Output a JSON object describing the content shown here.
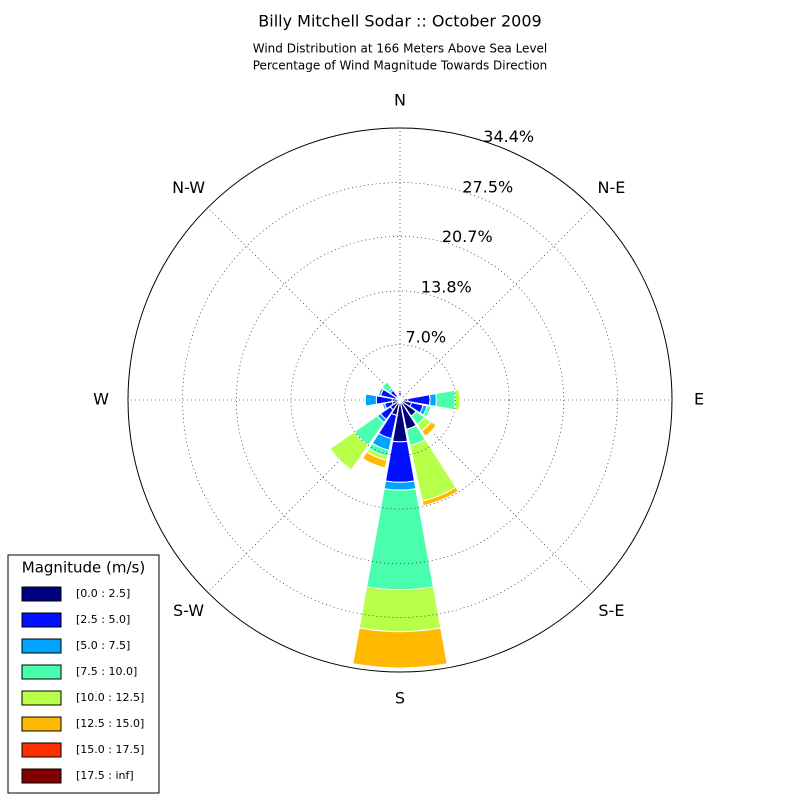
{
  "chart_data": {
    "type": "windrose",
    "title": "Billy Mitchell Sodar :: October 2009",
    "subtitle": [
      "Wind Distribution at 166 Meters Above Sea Level",
      "Percentage of Wind Magnitude Towards Direction"
    ],
    "categories": [
      "N",
      null,
      "N-E",
      null,
      "E",
      null,
      "S-E",
      null,
      "S",
      null,
      "S-W",
      null,
      "W",
      null,
      "N-W",
      null
    ],
    "rlim": [
      0,
      34.4
    ],
    "rticks": [
      {
        "value": 7.0,
        "label": "7.0%"
      },
      {
        "value": 13.8,
        "label": "13.8%"
      },
      {
        "value": 20.7,
        "label": "20.7%"
      },
      {
        "value": 27.5,
        "label": "27.5%"
      },
      {
        "value": 34.4,
        "label": "34.4%"
      }
    ],
    "legend_title": "Magnitude (m/s)",
    "legend_position": "lower left",
    "series": [
      {
        "name": "[0.0 : 2.5]",
        "color": "#00007f",
        "values": [
          1.0,
          0.3,
          0.3,
          0.3,
          1.0,
          1.5,
          2.5,
          3.8,
          5.3,
          2.0,
          1.5,
          1.0,
          1.0,
          0.5,
          0.5,
          0.3
        ]
      },
      {
        "name": "[2.5 : 5.0]",
        "color": "#0010ff",
        "values": [
          0.2,
          0.1,
          0.1,
          0.2,
          2.8,
          1.5,
          0,
          0,
          5.1,
          3.0,
          1.5,
          1.0,
          2.0,
          2.0,
          1.0,
          0.2
        ]
      },
      {
        "name": "[5.0 : 7.5]",
        "color": "#00a4ff",
        "values": [
          0,
          0,
          0,
          0,
          0.8,
          0.5,
          0,
          0,
          1.0,
          1.5,
          0.5,
          0.3,
          1.4,
          0.3,
          0.3,
          0.2
        ]
      },
      {
        "name": "[7.5 : 10.0]",
        "color": "#49ffad",
        "values": [
          0,
          0,
          0,
          0,
          2.4,
          0.5,
          1.3,
          2.1,
          12.6,
          0.8,
          3.5,
          0,
          0,
          0,
          1.0,
          0
        ]
      },
      {
        "name": "[10.0 : 12.5]",
        "color": "#b7ff49",
        "values": [
          0,
          0,
          0,
          0,
          0.6,
          0,
          1.0,
          7.2,
          5.3,
          0.5,
          3.8,
          0,
          0,
          0,
          0,
          0
        ]
      },
      {
        "name": "[12.5 : 15.0]",
        "color": "#ffb900",
        "values": [
          0,
          0,
          0,
          0,
          0,
          0,
          0.8,
          0.6,
          4.6,
          1.0,
          0,
          0,
          0,
          0,
          0,
          0
        ]
      },
      {
        "name": "[15.0 : 17.5]",
        "color": "#ff3000",
        "values": [
          0,
          0,
          0,
          0,
          0,
          0,
          0,
          0,
          0,
          0,
          0,
          0,
          0,
          0,
          0,
          0
        ]
      },
      {
        "name": "[17.5 : inf]",
        "color": "#7f0000",
        "values": [
          0,
          0,
          0,
          0,
          0,
          0,
          0,
          0,
          0,
          0,
          0,
          0,
          0,
          0,
          0,
          0
        ]
      }
    ]
  }
}
